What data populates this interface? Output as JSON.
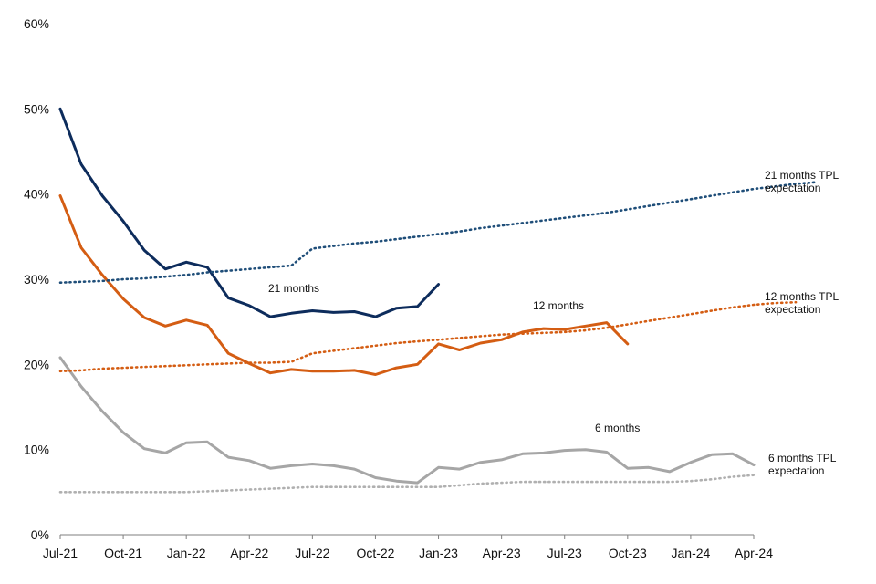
{
  "chart_data": {
    "type": "line",
    "title": "",
    "xlabel": "",
    "ylabel": "",
    "ylim": [
      0,
      60
    ],
    "y_ticks": [
      "0%",
      "10%",
      "20%",
      "30%",
      "40%",
      "50%",
      "60%"
    ],
    "x_ticks": [
      "Jul-21",
      "Oct-21",
      "Jan-22",
      "Apr-22",
      "Jul-22",
      "Oct-22",
      "Jan-23",
      "Apr-23",
      "Jul-23",
      "Oct-23",
      "Jan-24",
      "Apr-24"
    ],
    "x_start": "Jul-21",
    "grid": false,
    "legend": "none",
    "series": [
      {
        "name": "21 months",
        "style": "solid",
        "color": "#0d2c5c",
        "values": [
          50.0,
          43.5,
          39.8,
          36.8,
          33.4,
          31.2,
          32.0,
          31.4,
          27.8,
          26.9,
          25.6,
          26.0,
          26.3,
          26.1,
          26.2,
          25.6,
          26.6,
          26.8,
          29.4
        ]
      },
      {
        "name": "12 months",
        "style": "solid",
        "color": "#d45d13",
        "values": [
          39.8,
          33.7,
          30.5,
          27.7,
          25.5,
          24.5,
          25.2,
          24.6,
          21.3,
          20.1,
          19.0,
          19.4,
          19.2,
          19.2,
          19.3,
          18.8,
          19.6,
          20.0,
          22.4,
          21.7,
          22.5,
          22.9,
          23.8,
          24.2,
          24.1,
          24.5,
          24.9,
          22.4
        ]
      },
      {
        "name": "6 months",
        "style": "solid",
        "color": "#a6a6a6",
        "values": [
          20.8,
          17.4,
          14.5,
          12.0,
          10.1,
          9.6,
          10.8,
          10.9,
          9.1,
          8.7,
          7.8,
          8.1,
          8.3,
          8.1,
          7.7,
          6.7,
          6.3,
          6.1,
          7.9,
          7.7,
          8.5,
          8.8,
          9.5,
          9.6,
          9.9,
          10.0,
          9.7,
          7.8,
          7.9,
          7.4,
          8.5,
          9.4,
          9.5,
          8.2
        ]
      },
      {
        "name": "21 months TPL expectation",
        "style": "dotted",
        "color": "#1f4e79",
        "values": [
          29.6,
          29.7,
          29.8,
          30.0,
          30.1,
          30.3,
          30.5,
          30.8,
          31.0,
          31.2,
          31.4,
          31.6,
          33.6,
          33.9,
          34.2,
          34.4,
          34.7,
          35.0,
          35.3,
          35.6,
          36.0,
          36.3,
          36.6,
          36.9,
          37.2,
          37.5,
          37.8,
          38.2,
          38.6,
          39.0,
          39.4,
          39.8,
          40.2,
          40.6,
          40.9,
          41.2,
          41.4
        ]
      },
      {
        "name": "12 months TPL expectation",
        "style": "dotted",
        "color": "#d45d13",
        "values": [
          19.2,
          19.3,
          19.5,
          19.6,
          19.7,
          19.8,
          19.9,
          20.0,
          20.1,
          20.2,
          20.2,
          20.3,
          21.3,
          21.6,
          21.9,
          22.2,
          22.5,
          22.7,
          22.9,
          23.1,
          23.3,
          23.5,
          23.6,
          23.7,
          23.8,
          24.0,
          24.3,
          24.7,
          25.1,
          25.5,
          25.9,
          26.3,
          26.7,
          27.0,
          27.2,
          27.3
        ]
      },
      {
        "name": "6 months TPL expectation",
        "style": "dotted",
        "color": "#b0b0b0",
        "values": [
          5.0,
          5.0,
          5.0,
          5.0,
          5.0,
          5.0,
          5.0,
          5.1,
          5.2,
          5.3,
          5.4,
          5.5,
          5.6,
          5.6,
          5.6,
          5.6,
          5.6,
          5.6,
          5.6,
          5.8,
          6.0,
          6.1,
          6.2,
          6.2,
          6.2,
          6.2,
          6.2,
          6.2,
          6.2,
          6.2,
          6.3,
          6.5,
          6.8,
          7.0
        ]
      }
    ],
    "annotations": [
      {
        "text": "21 months"
      },
      {
        "text": "12 months"
      },
      {
        "text": "6 months"
      },
      {
        "text_lines": [
          "21 months TPL",
          "expectation"
        ]
      },
      {
        "text_lines": [
          "12 months TPL",
          "expectation"
        ]
      },
      {
        "text_lines": [
          "6 months TPL",
          "expectation"
        ]
      }
    ]
  }
}
